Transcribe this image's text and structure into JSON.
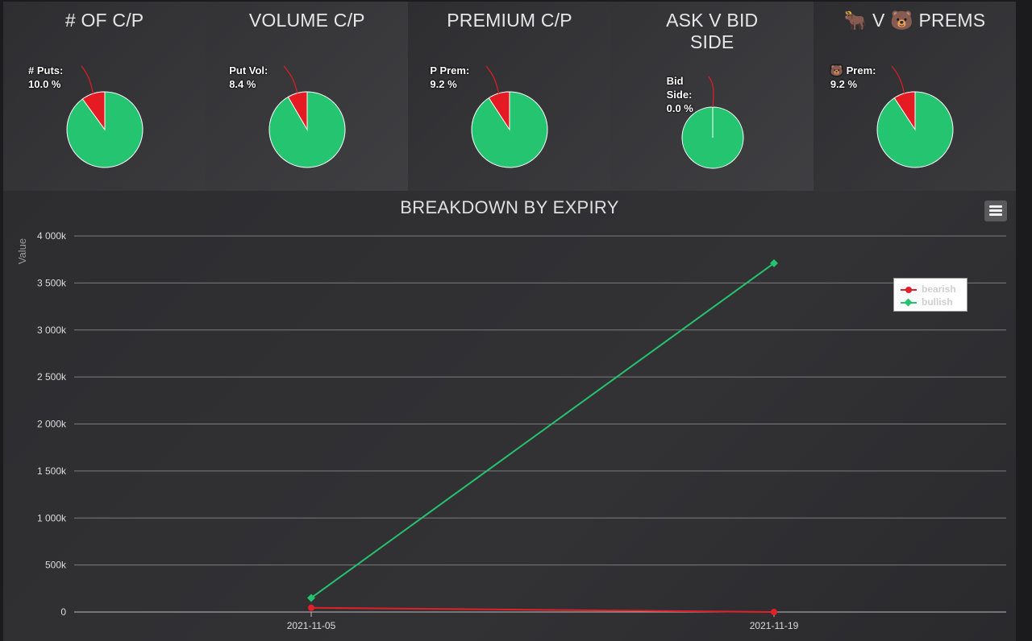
{
  "panels": [
    {
      "title": "# OF C/P",
      "label": "# Puts:\n10.0 %",
      "label_name": "# Puts",
      "percent": 10.0,
      "arc_percent": 10.0
    },
    {
      "title": "VOLUME C/P",
      "label": "Put Vol:\n8.4 %",
      "label_name": "Put Vol",
      "percent": 8.4,
      "arc_percent": 8.4
    },
    {
      "title": "PREMIUM C/P",
      "label": "P Prem:\n9.2 %",
      "label_name": "P Prem",
      "percent": 9.2,
      "arc_percent": 9.2
    },
    {
      "title": "ASK V BID\nSIDE",
      "label": "Bid\nSide:\n0.0 %",
      "label_name": "Bid Side",
      "percent": 0.0,
      "arc_percent": 0.0
    },
    {
      "title": "🐂 V 🐻 PREMS",
      "label": "🐻 Prem:\n9.2 %",
      "label_name": "🐻 Prem",
      "percent": 9.2,
      "arc_percent": 9.2
    }
  ],
  "colors": {
    "bearish": "#e3202a",
    "bullish": "#26c36f",
    "pie_green": "#25c470",
    "pie_red": "#e51b23"
  },
  "chart_data": {
    "type": "line",
    "title": "BREAKDOWN BY EXPIRY",
    "ylabel": "Value",
    "xlabel": "",
    "categories": [
      "2021-11-05",
      "2021-11-19"
    ],
    "ylim": [
      0,
      4000000
    ],
    "yticks": [
      0,
      500000,
      1000000,
      1500000,
      2000000,
      2500000,
      3000000,
      3500000,
      4000000
    ],
    "ytick_labels": [
      "0",
      "500k",
      "1 000k",
      "1 500k",
      "2 000k",
      "2 500k",
      "3 000k",
      "3 500k",
      "4 000k"
    ],
    "grid": true,
    "legend_position": "top-right",
    "series": [
      {
        "name": "bearish",
        "values": [
          45000,
          0
        ]
      },
      {
        "name": "bullish",
        "values": [
          150000,
          3710000
        ]
      }
    ]
  }
}
